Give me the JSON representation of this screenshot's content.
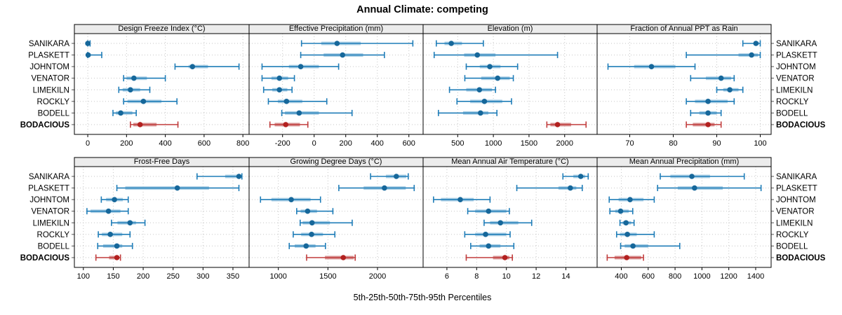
{
  "title": "Annual Climate: competing",
  "xlabel": "5th-25th-50th-75th-95th Percentiles",
  "colors": {
    "blue_dot": "#16679a",
    "blue_line": "#1f7db8",
    "blue_band": "#abcfe5",
    "red_dot": "#b2201f",
    "red_line": "#c13c3c",
    "red_band": "#d89595",
    "grid": "#c6c6c6",
    "strip_bg": "#ececec",
    "panel_border": "#000000",
    "tick": "#000000"
  },
  "chart_data": {
    "type": "dotplot-interval-trellis",
    "layout": {
      "rows": 2,
      "cols": 4
    },
    "percentile_labels": [
      "5th",
      "25th",
      "50th",
      "75th",
      "95th"
    ],
    "sites": [
      "SANIKARA",
      "PLASKETT",
      "JOHNTOM",
      "VENATOR",
      "LIMEKILN",
      "ROCKLY",
      "BODELL",
      "BODACIOUS"
    ],
    "highlight_site": "BODACIOUS",
    "panels": [
      {
        "title": "Design Freeze Index (°C)",
        "row": 0,
        "col": 0,
        "xticks": [
          0,
          200,
          400,
          600,
          800
        ],
        "xlim": [
          -69,
          832
        ],
        "series": [
          {
            "site": "SANIKARA",
            "percentiles": [
              0,
              0,
              0,
              3,
              12
            ]
          },
          {
            "site": "PLASKETT",
            "percentiles": [
              0,
              0,
              2,
              15,
              72
            ]
          },
          {
            "site": "JOHNTOM",
            "percentiles": [
              450,
              520,
              540,
              620,
              780
            ]
          },
          {
            "site": "VENATOR",
            "percentiles": [
              185,
              200,
              238,
              305,
              400
            ]
          },
          {
            "site": "LIMEKILN",
            "percentiles": [
              160,
              180,
              220,
              270,
              320
            ]
          },
          {
            "site": "ROCKLY",
            "percentiles": [
              185,
              205,
              287,
              380,
              460
            ]
          },
          {
            "site": "BODELL",
            "percentiles": [
              130,
              145,
              170,
              230,
              250
            ]
          },
          {
            "site": "BODACIOUS",
            "percentiles": [
              220,
              235,
              270,
              355,
              465
            ]
          }
        ]
      },
      {
        "title": "Effective Precipitation (mm)",
        "row": 0,
        "col": 1,
        "xticks": [
          -200,
          0,
          200,
          400,
          600
        ],
        "xlim": [
          -412,
          690
        ],
        "series": [
          {
            "site": "SANIKARA",
            "percentiles": [
              -80,
              45,
              145,
              295,
              625
            ]
          },
          {
            "site": "PLASKETT",
            "percentiles": [
              -85,
              60,
              180,
              310,
              445
            ]
          },
          {
            "site": "JOHNTOM",
            "percentiles": [
              -330,
              -160,
              -85,
              30,
              155
            ]
          },
          {
            "site": "VENATOR",
            "percentiles": [
              -330,
              -270,
              -220,
              -165,
              -125
            ]
          },
          {
            "site": "LIMEKILN",
            "percentiles": [
              -320,
              -265,
              -220,
              -170,
              -140
            ]
          },
          {
            "site": "ROCKLY",
            "percentiles": [
              -290,
              -230,
              -175,
              -75,
              80
            ]
          },
          {
            "site": "BODELL",
            "percentiles": [
              -205,
              -185,
              -95,
              30,
              240
            ]
          },
          {
            "site": "BODACIOUS",
            "percentiles": [
              -280,
              -250,
              -180,
              -90,
              -40
            ]
          }
        ]
      },
      {
        "title": "Elevation (m)",
        "row": 0,
        "col": 2,
        "xticks": [
          500,
          1000,
          1500,
          2000
        ],
        "xlim": [
          15,
          2455
        ],
        "series": [
          {
            "site": "SANIKARA",
            "percentiles": [
              200,
              315,
              410,
              560,
              860
            ]
          },
          {
            "site": "PLASKETT",
            "percentiles": [
              170,
              590,
              775,
              1030,
              1900
            ]
          },
          {
            "site": "JOHNTOM",
            "percentiles": [
              620,
              810,
              950,
              1100,
              1340
            ]
          },
          {
            "site": "VENATOR",
            "percentiles": [
              600,
              830,
              1060,
              1230,
              1280
            ]
          },
          {
            "site": "LIMEKILN",
            "percentiles": [
              385,
              620,
              805,
              980,
              1030
            ]
          },
          {
            "site": "ROCKLY",
            "percentiles": [
              490,
              675,
              875,
              1125,
              1255
            ]
          },
          {
            "site": "BODELL",
            "percentiles": [
              230,
              575,
              820,
              930,
              1050
            ]
          },
          {
            "site": "BODACIOUS",
            "percentiles": [
              1750,
              1800,
              1900,
              2090,
              2300
            ]
          }
        ]
      },
      {
        "title": "Fraction of Annual PPT as Rain",
        "row": 0,
        "col": 3,
        "xticks": [
          70,
          80,
          90,
          100
        ],
        "xlim": [
          62.5,
          102.5
        ],
        "series": [
          {
            "site": "SANIKARA",
            "percentiles": [
              96,
              98.5,
              99,
              99.7,
              100
            ]
          },
          {
            "site": "PLASKETT",
            "percentiles": [
              83,
              95,
              98,
              99.5,
              100
            ]
          },
          {
            "site": "JOHNTOM",
            "percentiles": [
              65,
              71,
              75,
              80.5,
              85
            ]
          },
          {
            "site": "VENATOR",
            "percentiles": [
              84,
              87.5,
              91,
              93.3,
              94
            ]
          },
          {
            "site": "LIMEKILN",
            "percentiles": [
              90,
              91.5,
              93,
              95,
              96
            ]
          },
          {
            "site": "ROCKLY",
            "percentiles": [
              83,
              85,
              88,
              92.5,
              94
            ]
          },
          {
            "site": "BODELL",
            "percentiles": [
              84,
              86,
              88,
              90,
              91
            ]
          },
          {
            "site": "BODACIOUS",
            "percentiles": [
              83,
              84.5,
              88,
              89.5,
              91
            ]
          }
        ]
      },
      {
        "title": "Frost-Free Days",
        "row": 1,
        "col": 0,
        "xticks": [
          100,
          150,
          200,
          250,
          300,
          350
        ],
        "xlim": [
          85,
          377
        ],
        "series": [
          {
            "site": "SANIKARA",
            "percentiles": [
              290,
              337,
              360,
              363,
              365
            ]
          },
          {
            "site": "PLASKETT",
            "percentiles": [
              156,
              170,
              257,
              310,
              360
            ]
          },
          {
            "site": "JOHNTOM",
            "percentiles": [
              130,
              138,
              152,
              166,
              175
            ]
          },
          {
            "site": "VENATOR",
            "percentiles": [
              106,
              112,
              142,
              162,
              175
            ]
          },
          {
            "site": "LIMEKILN",
            "percentiles": [
              147,
              157,
              178,
              188,
              203
            ]
          },
          {
            "site": "ROCKLY",
            "percentiles": [
              125,
              131,
              145,
              165,
              178
            ]
          },
          {
            "site": "BODELL",
            "percentiles": [
              124,
              133,
              156,
              165,
              182
            ]
          },
          {
            "site": "BODACIOUS",
            "percentiles": [
              121,
              143,
              156,
              160,
              162
            ]
          }
        ]
      },
      {
        "title": "Growing Degree Days (°C)",
        "row": 1,
        "col": 1,
        "xticks": [
          1000,
          1500,
          2000
        ],
        "xlim": [
          705,
          2460
        ],
        "series": [
          {
            "site": "SANIKARA",
            "percentiles": [
              1930,
              2085,
              2190,
              2290,
              2310
            ]
          },
          {
            "site": "PLASKETT",
            "percentiles": [
              1610,
              1860,
              2070,
              2285,
              2370
            ]
          },
          {
            "site": "JOHNTOM",
            "percentiles": [
              820,
              930,
              1130,
              1325,
              1425
            ]
          },
          {
            "site": "VENATOR",
            "percentiles": [
              1185,
              1225,
              1295,
              1390,
              1550
            ]
          },
          {
            "site": "LIMEKILN",
            "percentiles": [
              1220,
              1245,
              1340,
              1520,
              1745
            ]
          },
          {
            "site": "ROCKLY",
            "percentiles": [
              1150,
              1230,
              1335,
              1450,
              1570
            ]
          },
          {
            "site": "BODELL",
            "percentiles": [
              1110,
              1165,
              1280,
              1375,
              1475
            ]
          },
          {
            "site": "BODACIOUS",
            "percentiles": [
              1285,
              1470,
              1655,
              1760,
              1775
            ]
          }
        ]
      },
      {
        "title": "Mean Annual Air Temperature (°C)",
        "row": 1,
        "col": 2,
        "xticks": [
          6,
          8,
          10,
          12,
          14
        ],
        "xlim": [
          4.4,
          16.1
        ],
        "series": [
          {
            "site": "SANIKARA",
            "percentiles": [
              13.8,
              14.5,
              15.0,
              15.3,
              15.5
            ]
          },
          {
            "site": "PLASKETT",
            "percentiles": [
              10.7,
              13.5,
              14.3,
              14.7,
              15.1
            ]
          },
          {
            "site": "JOHNTOM",
            "percentiles": [
              5.1,
              5.6,
              6.9,
              7.8,
              8.9
            ]
          },
          {
            "site": "VENATOR",
            "percentiles": [
              7.4,
              7.9,
              8.8,
              10.0,
              10.2
            ]
          },
          {
            "site": "LIMEKILN",
            "percentiles": [
              8.5,
              8.9,
              9.6,
              10.8,
              11.7
            ]
          },
          {
            "site": "ROCKLY",
            "percentiles": [
              7.2,
              7.9,
              8.6,
              10.0,
              10.25
            ]
          },
          {
            "site": "BODELL",
            "percentiles": [
              7.6,
              8.2,
              8.8,
              9.6,
              10.5
            ]
          },
          {
            "site": "BODACIOUS",
            "percentiles": [
              7.3,
              9.1,
              9.9,
              10.2,
              10.4
            ]
          }
        ]
      },
      {
        "title": "Mean Annual Precipitation (mm)",
        "row": 1,
        "col": 3,
        "xticks": [
          400,
          600,
          800,
          1000,
          1200,
          1400
        ],
        "xlim": [
          220,
          1515
        ],
        "series": [
          {
            "site": "SANIKARA",
            "percentiles": [
              690,
              765,
              925,
              1060,
              1315
            ]
          },
          {
            "site": "PLASKETT",
            "percentiles": [
              670,
              820,
              945,
              1155,
              1440
            ]
          },
          {
            "site": "JOHNTOM",
            "percentiles": [
              310,
              380,
              465,
              565,
              645
            ]
          },
          {
            "site": "VENATOR",
            "percentiles": [
              315,
              355,
              395,
              455,
              485
            ]
          },
          {
            "site": "LIMEKILN",
            "percentiles": [
              390,
              410,
              435,
              473,
              495
            ]
          },
          {
            "site": "ROCKLY",
            "percentiles": [
              365,
              390,
              445,
              515,
              645
            ]
          },
          {
            "site": "BODELL",
            "percentiles": [
              395,
              425,
              487,
              600,
              835
            ]
          },
          {
            "site": "BODACIOUS",
            "percentiles": [
              295,
              350,
              440,
              548,
              565
            ]
          }
        ]
      }
    ]
  }
}
